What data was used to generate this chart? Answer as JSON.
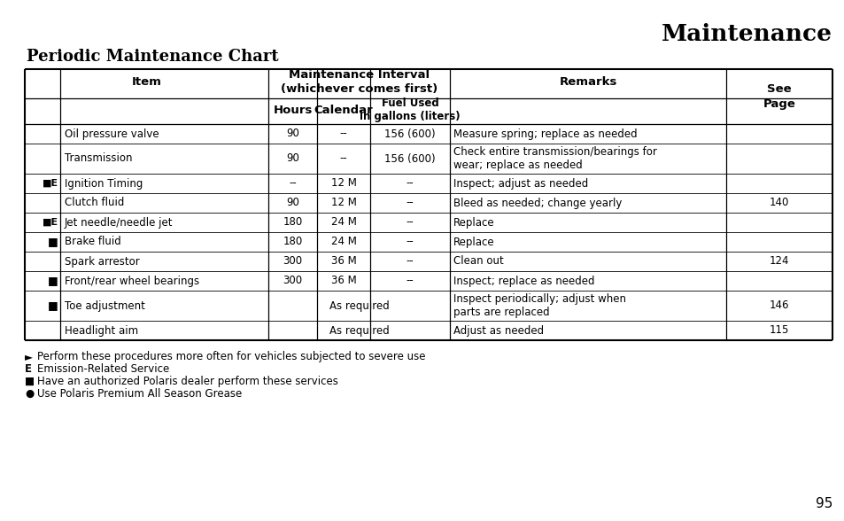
{
  "title": "Maintenance",
  "subtitle": "Periodic Maintenance Chart",
  "page_number": "95",
  "background_color": "#ffffff",
  "rows": [
    {
      "sym": "",
      "item": "Oil pressure valve",
      "hours": "90",
      "cal": "--",
      "fuel": "156 (600)",
      "remarks": "Measure spring; replace as needed",
      "page": "",
      "tall": false
    },
    {
      "sym": "",
      "item": "Transmission",
      "hours": "90",
      "cal": "--",
      "fuel": "156 (600)",
      "remarks": "Check entire transmission/bearings for\nwear; replace as needed",
      "page": "",
      "tall": true
    },
    {
      "sym": "■E",
      "item": "Ignition Timing",
      "hours": "--",
      "cal": "12 M",
      "fuel": "--",
      "remarks": "Inspect; adjust as needed",
      "page": "",
      "tall": false
    },
    {
      "sym": "",
      "item": "Clutch fluid",
      "hours": "90",
      "cal": "12 M",
      "fuel": "--",
      "remarks": "Bleed as needed; change yearly",
      "page": "140",
      "tall": false
    },
    {
      "sym": "■E",
      "item": "Jet needle/needle jet",
      "hours": "180",
      "cal": "24 M",
      "fuel": "--",
      "remarks": "Replace",
      "page": "",
      "tall": false
    },
    {
      "sym": "■",
      "item": "Brake fluid",
      "hours": "180",
      "cal": "24 M",
      "fuel": "--",
      "remarks": "Replace",
      "page": "",
      "tall": false
    },
    {
      "sym": "",
      "item": "Spark arrestor",
      "hours": "300",
      "cal": "36 M",
      "fuel": "--",
      "remarks": "Clean out",
      "page": "124",
      "tall": false
    },
    {
      "sym": "■",
      "item": "Front/rear wheel bearings",
      "hours": "300",
      "cal": "36 M",
      "fuel": "--",
      "remarks": "Inspect; replace as needed",
      "page": "",
      "tall": false
    },
    {
      "sym": "■",
      "item": "Toe adjustment",
      "hours": "",
      "cal": "As required",
      "fuel": "",
      "remarks": "Inspect periodically; adjust when\nparts are replaced",
      "page": "146",
      "tall": true
    },
    {
      "sym": "",
      "item": "Headlight aim",
      "hours": "",
      "cal": "As required",
      "fuel": "",
      "remarks": "Adjust as needed",
      "page": "115",
      "tall": false
    }
  ],
  "footnotes": [
    {
      "sym": "►",
      "bold_sym": true,
      "text": "Perform these procedures more often for vehicles subjected to severe use"
    },
    {
      "sym": "E",
      "bold_sym": true,
      "text": "Emission-Related Service"
    },
    {
      "sym": "■",
      "bold_sym": false,
      "text": "Have an authorized Polaris dealer perform these services"
    },
    {
      "sym": "●",
      "bold_sym": false,
      "text": "Use Polaris Premium All Season Grease"
    }
  ]
}
